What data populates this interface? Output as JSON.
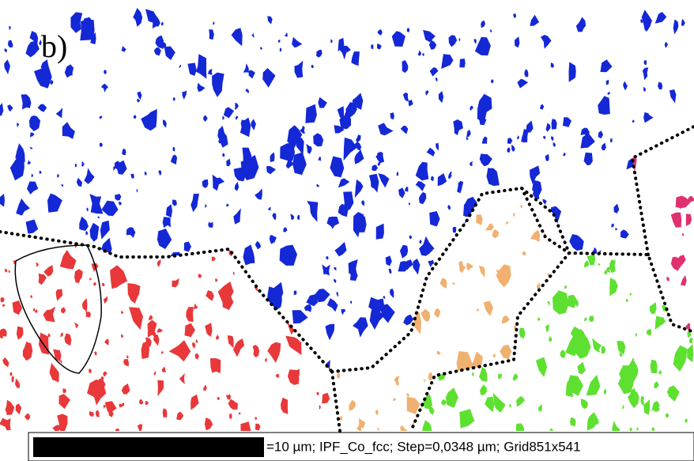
{
  "panel_label": "b)",
  "scale_caption": "=10 µm; IPF_Co_fcc; Step=0,0348 µm; Grid851x541"
}
